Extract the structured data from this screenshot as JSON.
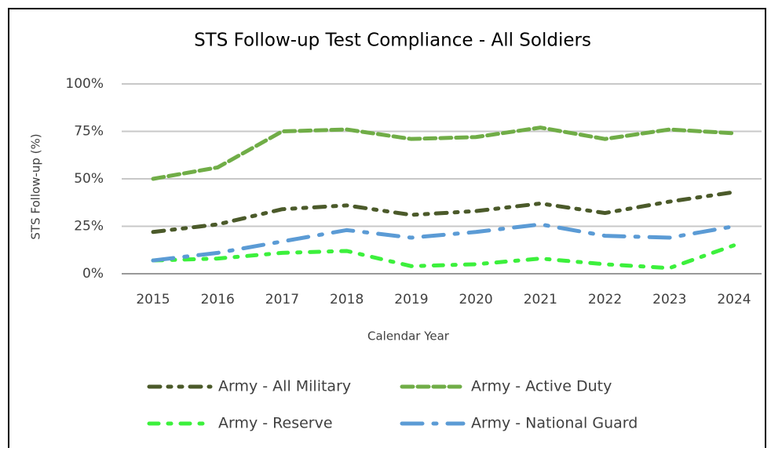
{
  "chart_data": {
    "type": "line",
    "title": "STS Follow-up Test Compliance - All Soldiers",
    "x_label": "Calendar Year",
    "y_label": "STS Follow-up (%)",
    "categories": [
      "2015",
      "2016",
      "2017",
      "2018",
      "2019",
      "2020",
      "2021",
      "2022",
      "2023",
      "2024"
    ],
    "series": [
      {
        "name": "Army - All Military",
        "color": "#4b5a2a",
        "values": [
          22,
          26,
          34,
          36,
          31,
          33,
          37,
          32,
          38,
          43
        ]
      },
      {
        "name": "Army - Active Duty",
        "color": "#70ad47",
        "values": [
          50,
          56,
          75,
          76,
          71,
          72,
          77,
          71,
          76,
          74
        ]
      },
      {
        "name": "Army - Reserve",
        "color": "#3cf03c",
        "values": [
          7,
          8,
          11,
          12,
          4,
          5,
          8,
          5,
          3,
          15
        ]
      },
      {
        "name": "Army - National Guard",
        "color": "#5b9bd5",
        "values": [
          7,
          11,
          17,
          23,
          19,
          22,
          26,
          20,
          19,
          25
        ]
      }
    ],
    "ylim": [
      0,
      100
    ],
    "yticks": [
      {
        "value": 0,
        "label": "0%"
      },
      {
        "value": 25,
        "label": "25%"
      },
      {
        "value": 50,
        "label": "50%"
      },
      {
        "value": 75,
        "label": "75%"
      },
      {
        "value": 100,
        "label": "100%"
      }
    ],
    "grid": true,
    "legend": "bottom"
  }
}
